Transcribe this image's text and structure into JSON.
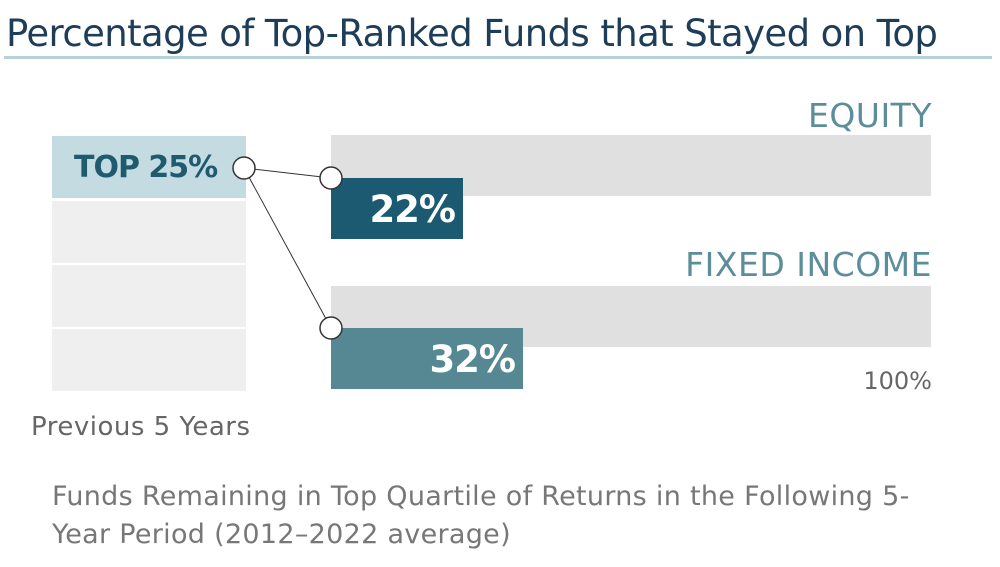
{
  "chart_data": {
    "type": "bar",
    "title": "Percentage of Top-Ranked Funds that Stayed on Top",
    "subtitle": "Funds Remaining in Top Quartile of Returns in the Following 5-Year Period (2012–2022 average)",
    "source_label": "Previous 5 Years",
    "source_bucket": "TOP 25%",
    "categories": [
      "EQUITY",
      "FIXED INCOME"
    ],
    "values": [
      22,
      32
    ],
    "value_labels": [
      "22%",
      "32%"
    ],
    "max_label": "100%",
    "ylim": [
      0,
      100
    ],
    "colors": {
      "equity": "#1c5a71",
      "fixed_income": "#558893",
      "track": "#e0e0e0"
    }
  }
}
